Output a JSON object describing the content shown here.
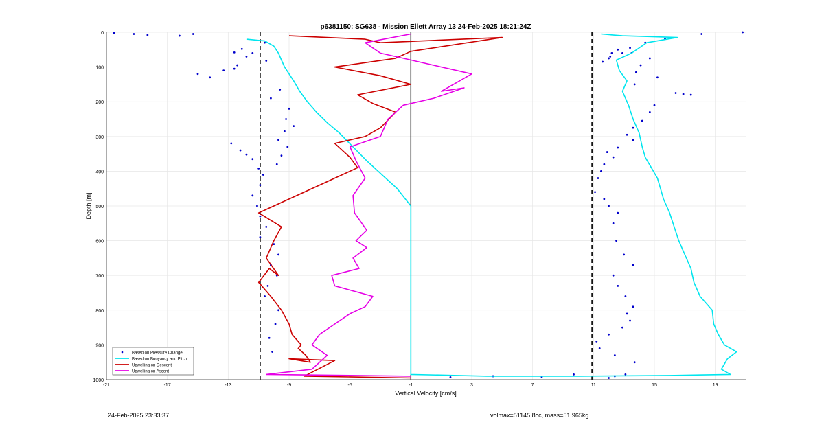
{
  "chart_data": {
    "type": "line",
    "title": "p6381150: SG638 - Mission Ellett Array 13 24-Feb-2025 18:21:24Z",
    "xlabel": "Vertical Velocity [cm/s]",
    "ylabel": "Depth [m]",
    "xlim": [
      -21,
      21
    ],
    "ylim": [
      0,
      1000
    ],
    "y_reversed": true,
    "x_ticks": [
      -21,
      -17,
      -13,
      -9,
      -5,
      -1,
      3,
      7,
      11,
      15,
      19
    ],
    "y_ticks": [
      0,
      100,
      200,
      300,
      400,
      500,
      600,
      700,
      800,
      900,
      1000
    ],
    "grid": true,
    "legend_position": "bottom-left",
    "vertical_lines": [
      {
        "x": -10.9,
        "style": "dashed",
        "color": "#000000"
      },
      {
        "x": 10.9,
        "style": "dashed",
        "color": "#000000"
      },
      {
        "x": -1,
        "style": "solid",
        "color": "#000000"
      }
    ],
    "series": [
      {
        "name": "Based on Pressure Change",
        "color": "#0000cc",
        "kind": "scatter",
        "x": [
          -20.5,
          -19.2,
          -18.3,
          -16.2,
          -15.3,
          -12.1,
          -12.6,
          -11.8,
          -10.5,
          -12.4,
          -13.3,
          -15.0,
          -14.2,
          -12.6,
          -11.4,
          -10.6,
          -9.6,
          -10.2,
          -9.0,
          -9.2,
          -8.7,
          -9.3,
          -9.7,
          -9.1,
          -9.5,
          -9.8,
          -12.8,
          -12.2,
          -11.8,
          -11.4,
          -11.0,
          -10.7,
          -10.9,
          -11.4,
          -11.1,
          -10.9,
          -10.5,
          -10.9,
          -10.0,
          -9.7,
          -10.2,
          -9.8,
          -10.4,
          -10.6,
          -9.7,
          -9.9,
          -10.3,
          -10.1,
          20.8,
          18.1,
          15.7,
          14.4,
          13.5,
          14.7,
          14.1,
          13.8,
          15.2,
          13.7,
          16.4,
          16.9,
          17.4,
          15.0,
          14.7,
          14.2,
          13.6,
          13.2,
          13.6,
          12.6,
          11.9,
          12.3,
          11.7,
          11.5,
          11.3,
          11.1,
          11.7,
          12.0,
          12.6,
          12.3,
          12.5,
          13.0,
          13.6,
          12.3,
          12.6,
          13.1,
          13.6,
          13.2,
          13.4,
          12.9,
          12.0,
          11.2,
          11.4,
          12.4,
          13.7,
          13.1,
          12.4,
          12.2,
          12.1,
          12.6,
          13.4,
          12.9,
          12.0,
          11.6,
          12.0,
          1.6,
          4.4,
          7.6,
          9.7
        ],
        "y": [
          2,
          5,
          8,
          10,
          5,
          48,
          58,
          70,
          82,
          95,
          110,
          120,
          130,
          105,
          60,
          30,
          165,
          190,
          220,
          250,
          270,
          285,
          310,
          330,
          355,
          380,
          320,
          340,
          352,
          365,
          392,
          410,
          440,
          470,
          500,
          530,
          560,
          590,
          610,
          640,
          670,
          700,
          730,
          760,
          800,
          840,
          880,
          920,
          0,
          5,
          18,
          30,
          60,
          75,
          95,
          115,
          130,
          150,
          175,
          178,
          180,
          210,
          230,
          255,
          275,
          295,
          310,
          332,
          345,
          360,
          380,
          400,
          420,
          460,
          480,
          500,
          520,
          550,
          600,
          640,
          670,
          700,
          730,
          760,
          790,
          810,
          830,
          850,
          870,
          890,
          910,
          930,
          950,
          985,
          990,
          60,
          70,
          50,
          45,
          60,
          75,
          85,
          995,
          993,
          990,
          992,
          985
        ]
      },
      {
        "name": "Based on Buoyancy and Pitch",
        "color": "#00e5ee",
        "kind": "line",
        "x": [
          -11.8,
          -10.6,
          -10.0,
          -9.7,
          -9.5,
          -9.3,
          -9.0,
          -8.7,
          -8.3,
          -7.8,
          -7.2,
          -6.5,
          -5.7,
          -4.8,
          -3.9,
          -2.9,
          -1.9,
          -1.0,
          -1.0,
          -1.0,
          -1.0,
          4.0,
          10.0,
          16.0,
          20.0,
          19.4,
          19.8,
          20.4,
          19.6,
          19.2,
          18.9,
          18.8,
          18.0,
          17.6,
          17.4,
          17.0,
          16.6,
          16.3,
          16.0,
          15.6,
          15.4,
          15.2,
          14.8,
          14.4,
          14.2,
          14.0,
          13.6,
          13.3,
          12.9,
          13.2,
          12.7,
          12.5,
          13.5,
          14.5,
          16.5,
          12.9,
          11.5
        ],
        "y": [
          20,
          25,
          40,
          60,
          80,
          100,
          120,
          140,
          170,
          200,
          230,
          260,
          290,
          330,
          370,
          410,
          450,
          500,
          510,
          750,
          985,
          990,
          990,
          988,
          985,
          970,
          940,
          920,
          900,
          870,
          840,
          800,
          760,
          720,
          680,
          640,
          600,
          560,
          520,
          480,
          450,
          420,
          390,
          360,
          330,
          290,
          250,
          210,
          170,
          140,
          110,
          80,
          60,
          30,
          15,
          10,
          5
        ]
      },
      {
        "name": "Upwelling on Descent",
        "color": "#cc0000",
        "kind": "line",
        "x": [
          -9.0,
          -4.0,
          -3.0,
          5.0,
          -1.0,
          -2.0,
          -6.0,
          -3.0,
          -1.0,
          -4.5,
          -3.5,
          -2.0,
          -3.0,
          -4.0,
          -6.0,
          -5.0,
          -4.5,
          -6.5,
          -10.0,
          -11.0,
          -9.5,
          -10.0,
          -10.5,
          -9.7,
          -10.3,
          -11.0,
          -10.2,
          -9.5,
          -9.0,
          -8.8,
          -8.2,
          -8.4,
          -7.9,
          -7.6,
          -9.0,
          -6.0,
          -8.0,
          -1.0
        ],
        "y": [
          10,
          20,
          30,
          15,
          55,
          75,
          100,
          125,
          150,
          180,
          205,
          230,
          275,
          300,
          320,
          360,
          390,
          430,
          500,
          520,
          560,
          600,
          650,
          700,
          680,
          720,
          760,
          800,
          840,
          870,
          900,
          910,
          930,
          950,
          940,
          945,
          990,
          995
        ]
      },
      {
        "name": "Upwelling on Ascent",
        "color": "#e600e6",
        "kind": "line",
        "x": [
          -1.0,
          -4.0,
          -3.0,
          -1.5,
          1.0,
          3.0,
          2.0,
          1.0,
          2.5,
          0.5,
          -1.5,
          -2.5,
          -3.0,
          -5.0,
          -4.6,
          -4.0,
          -4.8,
          -4.7,
          -3.9,
          -4.6,
          -3.9,
          -4.8,
          -4.4,
          -6.2,
          -6.0,
          -3.5,
          -4.0,
          -5.0,
          -6.0,
          -7.0,
          -7.5,
          -6.5,
          -7.5,
          -10.5,
          -1.0
        ],
        "y": [
          5,
          30,
          60,
          75,
          100,
          120,
          145,
          170,
          160,
          190,
          210,
          250,
          300,
          330,
          370,
          420,
          470,
          520,
          570,
          600,
          620,
          650,
          680,
          700,
          730,
          760,
          790,
          810,
          840,
          870,
          900,
          930,
          970,
          985,
          990
        ]
      }
    ],
    "footer_left": "24-Feb-2025 23:33:37",
    "footer_right": "volmax=51145.8cc, mass=51.965kg"
  }
}
